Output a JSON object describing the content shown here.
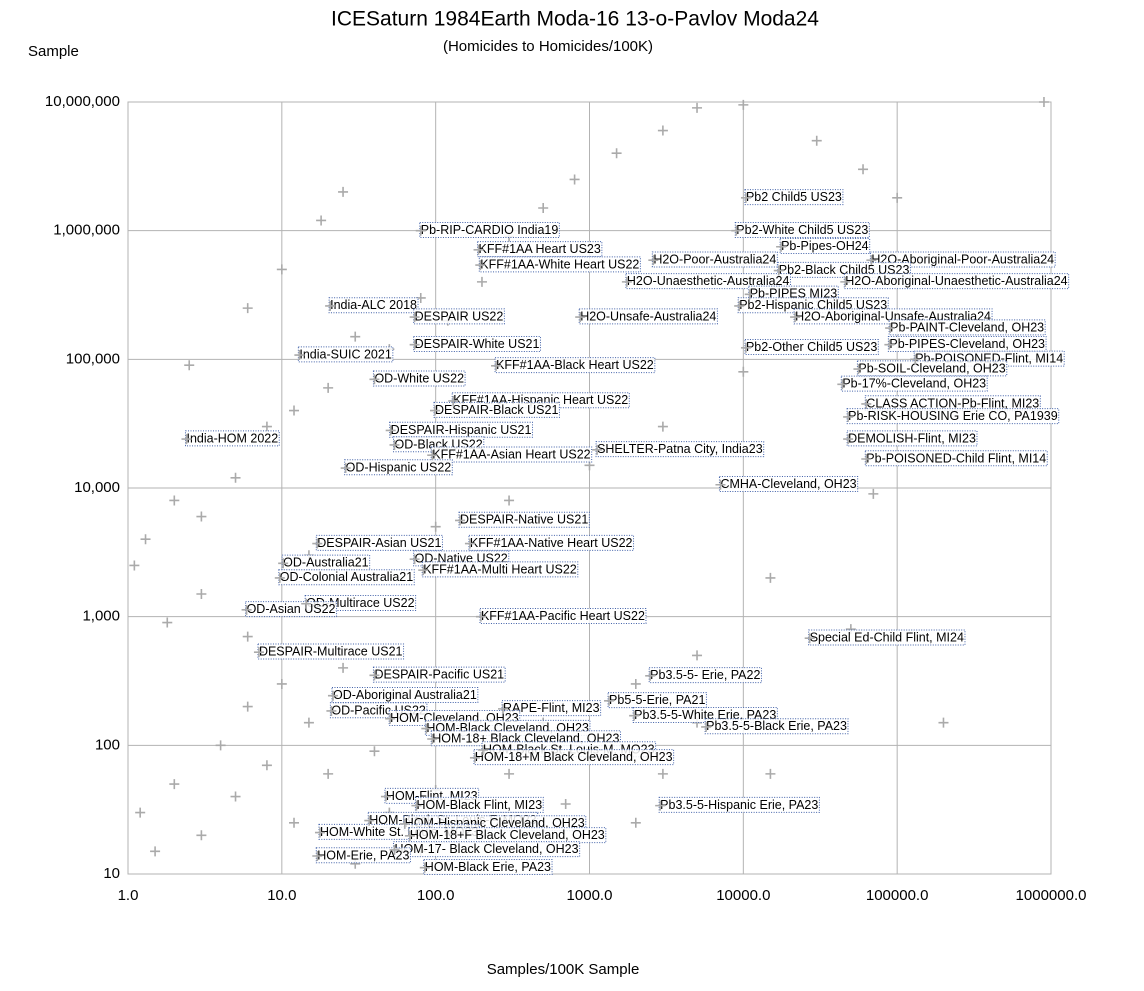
{
  "chart_data": {
    "type": "scatter",
    "title": "ICESaturn 1984Earth Moda-16 13-o-Pavlov Moda24",
    "subtitle": "(Homicides to Homicides/100K)",
    "y_label": "Sample",
    "x_label": "Samples/100K Sample",
    "xscale": "log",
    "yscale": "log",
    "grid": true,
    "color": "#aaaaaa",
    "label_border_color": "#4060a8",
    "xlim": [
      1,
      1000000
    ],
    "ylim": [
      10,
      10000000
    ],
    "xticks": [
      {
        "value": 1,
        "label": "1.0"
      },
      {
        "value": 10,
        "label": "10.0"
      },
      {
        "value": 100,
        "label": "100.0"
      },
      {
        "value": 1000,
        "label": "1000.0"
      },
      {
        "value": 10000,
        "label": "10000.0"
      },
      {
        "value": 100000,
        "label": "100000.0"
      },
      {
        "value": 1000000,
        "label": "1000000.0"
      }
    ],
    "yticks": [
      10,
      100,
      {
        "value": 1000,
        "label": "1,000"
      },
      {
        "value": 10000,
        "label": "10,000"
      },
      {
        "value": 100000,
        "label": "100,000"
      },
      {
        "value": 1000000,
        "label": "1,000,000"
      },
      {
        "value": 10000000,
        "label": "10,000,000"
      }
    ],
    "points": {
      "x": [
        1.2,
        1.5,
        2,
        3,
        4,
        5,
        6,
        8,
        10,
        12,
        15,
        20,
        25,
        30,
        40,
        50,
        60,
        80,
        100,
        150,
        200,
        300,
        500,
        700,
        1000,
        2000,
        3000,
        5000,
        15000,
        200000,
        1.1,
        1.3,
        2,
        3,
        5,
        8,
        12,
        20,
        30,
        50,
        80,
        120,
        200,
        300,
        500,
        800,
        1500,
        3000,
        5000,
        10000,
        30000,
        60000,
        100000,
        900000,
        1.8,
        3,
        6,
        15,
        40,
        100,
        300,
        1000,
        3000,
        10000,
        30000,
        70000,
        15000,
        5000,
        2000,
        50000,
        2.5,
        6,
        10,
        25,
        18
      ],
      "y": [
        30,
        15,
        50,
        20,
        100,
        40,
        200,
        70,
        300,
        25,
        150,
        60,
        400,
        12,
        90,
        30,
        250,
        15,
        45,
        120,
        20,
        60,
        150,
        35,
        80,
        25,
        60,
        150,
        60,
        150,
        2500,
        4000,
        8000,
        6000,
        12000,
        30000,
        40000,
        60000,
        150000,
        120000,
        300000,
        200000,
        400000,
        900000,
        1500000,
        2500000,
        4000000,
        6000000,
        9000000,
        9500000,
        5000000,
        3000000,
        1800000,
        10000000,
        900,
        1500,
        700,
        3000,
        2000,
        5000,
        8000,
        15000,
        30000,
        80000,
        300000,
        9000,
        2000,
        500,
        300,
        800,
        90000,
        250000,
        500000,
        2000000,
        1200000
      ]
    },
    "annotations": [
      {
        "label": "Pb2 Child5 US23",
        "x": 10400,
        "y": 1800000
      },
      {
        "label": "Pb-RIP-CARDIO India19",
        "x": 80,
        "y": 1000000
      },
      {
        "label": "Pb2-White Child5 US23",
        "x": 9000,
        "y": 1000000
      },
      {
        "label": "KFF#1AA Heart US23",
        "x": 190,
        "y": 710000
      },
      {
        "label": "Pb-Pipes-OH24",
        "x": 17600,
        "y": 750000
      },
      {
        "label": "H2O-Poor-Australia24",
        "x": 2600,
        "y": 590000
      },
      {
        "label": "H2O-Aboriginal-Poor-Australia24",
        "x": 68000,
        "y": 590000
      },
      {
        "label": "KFF#1AA-White Heart US22",
        "x": 195,
        "y": 540000
      },
      {
        "label": "Pb2-Black Child5 US23",
        "x": 17000,
        "y": 490000
      },
      {
        "label": "H2O-Unaesthetic-Australia24",
        "x": 1750,
        "y": 400000
      },
      {
        "label": "H2O-Aboriginal-Unaesthetic-Australia24",
        "x": 46000,
        "y": 400000
      },
      {
        "label": "Pb-PIPES MI23",
        "x": 11000,
        "y": 320000
      },
      {
        "label": "India-ALC 2018",
        "x": 20.6,
        "y": 260000
      },
      {
        "label": "Pb2-Hispanic Child5 US23",
        "x": 9400,
        "y": 260000
      },
      {
        "label": "DESPAIR US22",
        "x": 73,
        "y": 213000
      },
      {
        "label": "H2O-Unsafe-Australia24",
        "x": 870,
        "y": 213000
      },
      {
        "label": "H2O-Aboriginal-Unsafe-Australia24",
        "x": 21700,
        "y": 213000
      },
      {
        "label": "Pb-PAINT-Cleveland, OH23",
        "x": 90000,
        "y": 175000
      },
      {
        "label": "DESPAIR-White US21",
        "x": 73,
        "y": 130000
      },
      {
        "label": "Pb-PIPES-Cleveland, OH23",
        "x": 89000,
        "y": 130000
      },
      {
        "label": "Pb2-Other Child5 US23",
        "x": 10400,
        "y": 123000
      },
      {
        "label": "India-SUIC 2021",
        "x": 13,
        "y": 108000
      },
      {
        "label": "Pb-POISONED-Flint, MI14",
        "x": 131000,
        "y": 100000
      },
      {
        "label": "KFF#1AA-Black Heart US22",
        "x": 247,
        "y": 89000
      },
      {
        "label": "Pb-SOIL-Cleveland, OH23",
        "x": 56000,
        "y": 84000
      },
      {
        "label": "OD-White US22",
        "x": 40,
        "y": 70000
      },
      {
        "label": "Pb-17%-Cleveland, OH23",
        "x": 44000,
        "y": 64000
      },
      {
        "label": "KFF#1AA-Hispanic Heart US22",
        "x": 130,
        "y": 47500
      },
      {
        "label": "CLASS ACTION-Pb-Flint, MI23",
        "x": 63000,
        "y": 45000
      },
      {
        "label": "DESPAIR-Black US21",
        "x": 99,
        "y": 40000
      },
      {
        "label": "Pb-RISK-HOUSING Erie CO, PA1939",
        "x": 48000,
        "y": 35700
      },
      {
        "label": "DESPAIR-Hispanic US21",
        "x": 51,
        "y": 28000
      },
      {
        "label": "DEMOLISH-Flint, MI23",
        "x": 48000,
        "y": 24000
      },
      {
        "label": "India-HOM 2022",
        "x": 2.4,
        "y": 24000
      },
      {
        "label": "OD-Black US22",
        "x": 54,
        "y": 21600
      },
      {
        "label": "SHELTER-Patna City, India23",
        "x": 1120,
        "y": 19800
      },
      {
        "label": "KFF#1AA-Asian Heart US22",
        "x": 95,
        "y": 18000
      },
      {
        "label": "Pb-POISONED-Child Flint, MI14",
        "x": 63000,
        "y": 16800
      },
      {
        "label": "OD-Hispanic US22",
        "x": 26,
        "y": 14300
      },
      {
        "label": "CMHA-Cleveland, OH23",
        "x": 7100,
        "y": 10600
      },
      {
        "label": "DESPAIR-Native US21",
        "x": 144,
        "y": 5600
      },
      {
        "label": "DESPAIR-Asian US21",
        "x": 17,
        "y": 3700
      },
      {
        "label": "KFF#1AA-Native Heart US22",
        "x": 167,
        "y": 3700
      },
      {
        "label": "OD-Native US22",
        "x": 73,
        "y": 2800
      },
      {
        "label": "OD-Australia21",
        "x": 10.2,
        "y": 2600
      },
      {
        "label": "KFF#1AA-Multi Heart US22",
        "x": 83,
        "y": 2300
      },
      {
        "label": "OD-Colonial Australia21",
        "x": 9.7,
        "y": 2000
      },
      {
        "label": "OD-Multirace US22",
        "x": 14.4,
        "y": 1260
      },
      {
        "label": "OD-Asian US22",
        "x": 5.9,
        "y": 1130
      },
      {
        "label": "KFF#1AA-Pacific Heart US22",
        "x": 197,
        "y": 1000
      },
      {
        "label": "Special Ed-Child Flint, MI24",
        "x": 27000,
        "y": 680
      },
      {
        "label": "DESPAIR-Multirace US21",
        "x": 7.1,
        "y": 530
      },
      {
        "label": "Pb3.5-5- Erie, PA22",
        "x": 2480,
        "y": 347
      },
      {
        "label": "DESPAIR-Pacific US21",
        "x": 40,
        "y": 350
      },
      {
        "label": "OD-Aboriginal Australia21",
        "x": 21.5,
        "y": 243
      },
      {
        "label": "Pb5-5-Erie, PA21",
        "x": 1340,
        "y": 222
      },
      {
        "label": "RAPE-Flint, MI23",
        "x": 274,
        "y": 192
      },
      {
        "label": "OD-Pacific US22",
        "x": 21,
        "y": 185
      },
      {
        "label": "Pb3.5-5-White Erie, PA23",
        "x": 1950,
        "y": 170
      },
      {
        "label": "HOM-Cleveland, OH23",
        "x": 50.6,
        "y": 161
      },
      {
        "label": "Pb3.5-5-Black Erie, PA23",
        "x": 5730,
        "y": 139
      },
      {
        "label": "HOM-Black Cleveland, OH23",
        "x": 87,
        "y": 135
      },
      {
        "label": "HOM-18+ Black Cleveland, OH23",
        "x": 95,
        "y": 112
      },
      {
        "label": "HOM-Black St. Louis-M, MO23",
        "x": 203,
        "y": 92
      },
      {
        "label": "HOM-18+M Black Cleveland, OH23",
        "x": 180,
        "y": 80
      },
      {
        "label": "HOM-Flint, MI23",
        "x": 47.5,
        "y": 40
      },
      {
        "label": "HOM-Black Flint, MI23",
        "x": 75,
        "y": 34
      },
      {
        "label": "Pb3.5-5-Hispanic Erie, PA23",
        "x": 2880,
        "y": 34
      },
      {
        "label": "HOM-Black St. Louis-F, MO23",
        "x": 37,
        "y": 26
      },
      {
        "label": "HOM-Hispanic Cleveland, OH23",
        "x": 63,
        "y": 24.5
      },
      {
        "label": "HOM-White St. Louis, MO23",
        "x": 17.7,
        "y": 21
      },
      {
        "label": "HOM-18+F Black Cleveland, OH23",
        "x": 68,
        "y": 19.8
      },
      {
        "label": "HOM-17- Black Cleveland, OH23",
        "x": 54,
        "y": 15.4
      },
      {
        "label": "HOM-Erie, PA23",
        "x": 17,
        "y": 13.8
      },
      {
        "label": "HOM-Black Erie, PA23",
        "x": 85,
        "y": 11.2
      }
    ]
  }
}
